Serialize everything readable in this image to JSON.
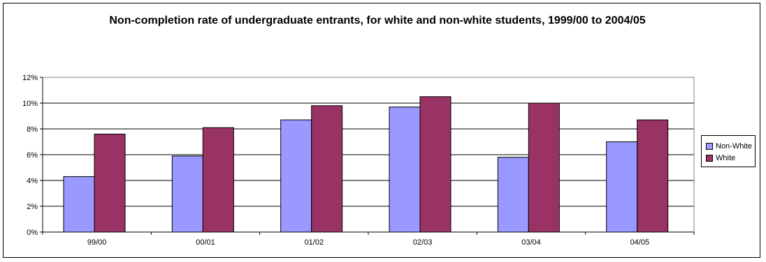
{
  "chart_data": {
    "type": "bar",
    "title": "Non-completion rate of undergraduate entrants, for white and non-white students, 1999/00 to 2004/05",
    "categories": [
      "99/00",
      "00/01",
      "01/02",
      "02/03",
      "03/04",
      "04/05"
    ],
    "series": [
      {
        "name": "Non-White",
        "color": "#9999ff",
        "values": [
          4.3,
          5.9,
          8.7,
          9.7,
          5.8,
          7.0
        ]
      },
      {
        "name": "White",
        "color": "#993366",
        "values": [
          7.6,
          8.1,
          9.8,
          10.5,
          10.0,
          8.7
        ]
      }
    ],
    "ylim": [
      0,
      12
    ],
    "yticks": [
      "0%",
      "2%",
      "4%",
      "6%",
      "8%",
      "10%",
      "12%"
    ],
    "grid": true,
    "legend": "right"
  }
}
